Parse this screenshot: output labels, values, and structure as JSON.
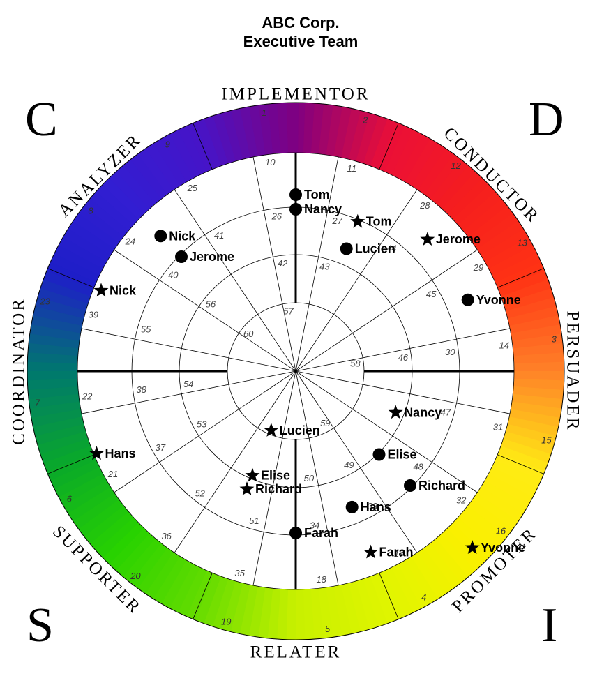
{
  "title": {
    "line1": "ABC Corp.",
    "line2": "Executive Team"
  },
  "quadrants": {
    "c": "C",
    "d": "D",
    "s": "S",
    "i": "I"
  },
  "styles": [
    {
      "label": "IMPLEMENTOR",
      "angle": 0
    },
    {
      "label": "CONDUCTOR",
      "angle": 45
    },
    {
      "label": "PERSUADER",
      "angle": 90
    },
    {
      "label": "PROMOTER",
      "angle": 135
    },
    {
      "label": "RELATER",
      "angle": 180
    },
    {
      "label": "SUPPORTER",
      "angle": 225
    },
    {
      "label": "COORDINATOR",
      "angle": 270
    },
    {
      "label": "ANALYZER",
      "angle": 315
    }
  ],
  "segment_numbers": [
    [
      "1",
      "10",
      "26",
      "42",
      "57"
    ],
    [
      "2",
      "11",
      "27",
      "43"
    ],
    [
      "12",
      "28",
      "44"
    ],
    [
      "13",
      "29",
      "45"
    ],
    [
      "3",
      "14",
      "30",
      "46",
      "58"
    ],
    [
      "15",
      "31",
      "47"
    ],
    [
      "16",
      "32",
      "48"
    ],
    [
      "4",
      "17",
      "33",
      "49",
      "59"
    ],
    [
      "5",
      "18",
      "34",
      "50"
    ],
    [
      "19",
      "35",
      "51"
    ],
    [
      "20",
      "36",
      "52"
    ],
    [
      "6",
      "21",
      "37",
      "53"
    ],
    [
      "7",
      "22",
      "38",
      "54"
    ],
    [
      "23",
      "39",
      "55"
    ],
    [
      "8",
      "24",
      "40",
      "56",
      "60"
    ],
    [
      "9",
      "25",
      "41"
    ]
  ],
  "people": [
    {
      "name": "Nick",
      "marker": "circle",
      "segment": 14,
      "ring": 1.7
    },
    {
      "name": "Nick",
      "marker": "star",
      "segment": 13,
      "ring": 1.3
    },
    {
      "name": "Jerome",
      "marker": "circle",
      "segment": 14,
      "ring": 2.3
    },
    {
      "name": "Jerome",
      "marker": "star",
      "segment": 2,
      "ring": 1.8
    },
    {
      "name": "Tom",
      "marker": "circle",
      "segment": 0,
      "ring": 2.0
    },
    {
      "name": "Tom",
      "marker": "star",
      "segment": 1,
      "ring": 2.3
    },
    {
      "name": "Nancy",
      "marker": "circle",
      "segment": 0,
      "ring": 2.3
    },
    {
      "name": "Nancy",
      "marker": "star",
      "segment": 5,
      "ring": 3.4
    },
    {
      "name": "Lucien",
      "marker": "circle",
      "segment": 1,
      "ring": 2.9
    },
    {
      "name": "Lucien",
      "marker": "star",
      "segment": 9,
      "ring": 4.3
    },
    {
      "name": "Yvonne",
      "marker": "circle",
      "segment": 3,
      "ring": 1.8
    },
    {
      "name": "Yvonne",
      "marker": "star",
      "segment": 6,
      "ring": 0.5
    },
    {
      "name": "Hans",
      "marker": "circle",
      "segment": 7,
      "ring": 2.6
    },
    {
      "name": "Hans",
      "marker": "star",
      "segment": 11,
      "ring": 1.2
    },
    {
      "name": "Elise",
      "marker": "circle",
      "segment": 6,
      "ring": 3.2
    },
    {
      "name": "Elise",
      "marker": "star",
      "segment": 9,
      "ring": 3.3
    },
    {
      "name": "Richard",
      "marker": "circle",
      "segment": 6,
      "ring": 2.3
    },
    {
      "name": "Richard",
      "marker": "star",
      "segment": 9,
      "ring": 3.0
    },
    {
      "name": "Farah",
      "marker": "circle",
      "segment": 8,
      "ring": 2.3
    },
    {
      "name": "Farah",
      "marker": "star",
      "segment": 7,
      "ring": 1.6
    }
  ]
}
